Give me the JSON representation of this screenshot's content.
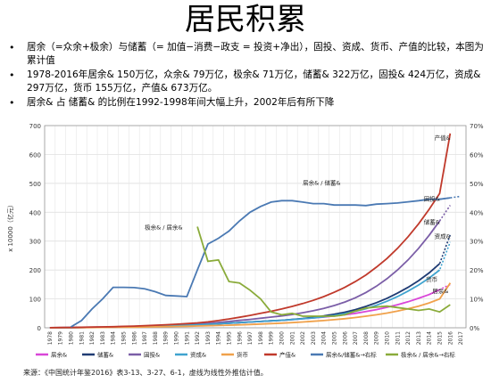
{
  "title": "居民积累",
  "bullets": [
    "居余（=众余+极余）与储蓄（= 加值−消费−政支 = 投资+净出），固投、资成、货币、产值的比较，本图为累计值",
    "1978-2016年居余& 150万亿，众余& 79万亿，极余& 71万亿，储蓄& 322万亿，固投& 424万亿，资成& 297万亿，货币 155万亿，产值& 673万亿。",
    "居余& 占 储蓄& 的比例在1992-1998年间大幅上升，2002年后有所下降"
  ],
  "source": "来源：《中国统计年鉴2016》表3-13、3-27、6-1，虚线为线性外推估计值。",
  "chart_data": {
    "type": "line",
    "ylabel": "x 10000（亿元）",
    "ylim": [
      0,
      700
    ],
    "y2lim": [
      0,
      0.7
    ],
    "yticks": [
      "0",
      "100",
      "200",
      "300",
      "400",
      "500",
      "600",
      "700"
    ],
    "y2ticks": [
      "0%",
      "10%",
      "20%",
      "30%",
      "40%",
      "50%",
      "60%",
      "70%"
    ],
    "x": [
      1978,
      1979,
      1980,
      1981,
      1982,
      1983,
      1984,
      1985,
      1986,
      1987,
      1988,
      1989,
      1990,
      1991,
      1992,
      1993,
      1994,
      1995,
      1996,
      1997,
      1998,
      1999,
      2000,
      2001,
      2002,
      2003,
      2004,
      2005,
      2006,
      2007,
      2008,
      2009,
      2010,
      2011,
      2012,
      2013,
      2014,
      2015,
      2016,
      2017
    ],
    "grid": true,
    "legend_position": "bottom",
    "series": [
      {
        "name": "居余&",
        "axis": "left",
        "color": "#d946d8",
        "dash_from": 2015,
        "values": [
          0.2,
          0.4,
          0.7,
          1,
          1.4,
          1.9,
          2.5,
          3.2,
          4,
          5,
          6,
          7,
          8,
          9,
          10.5,
          12,
          14,
          16,
          18,
          20,
          22,
          24,
          26,
          28.5,
          31,
          34,
          37,
          41,
          45,
          50,
          56,
          63,
          71,
          80,
          90,
          102,
          115,
          132,
          150,
          null
        ]
      },
      {
        "name": "储蓄&",
        "axis": "left",
        "color": "#1f3b73",
        "dash_from": 2015,
        "values": [
          0.2,
          0.4,
          0.7,
          1,
          1.4,
          1.9,
          2.5,
          3.2,
          4,
          5,
          6,
          7,
          8,
          9,
          10.5,
          12,
          14,
          16,
          18,
          20,
          22,
          24,
          26,
          29,
          32,
          36,
          41,
          47,
          54,
          63,
          74,
          87,
          102,
          120,
          140,
          163,
          190,
          222,
          322,
          null
        ]
      },
      {
        "name": "固投&",
        "axis": "left",
        "color": "#7b5ea7",
        "dash_from": 2015,
        "values": [
          0.3,
          0.6,
          0.9,
          1.3,
          1.8,
          2.4,
          3.1,
          4,
          5,
          6.2,
          7.5,
          8.5,
          9.5,
          11,
          13,
          15.5,
          18.5,
          22,
          25.5,
          29,
          33,
          37,
          41,
          46,
          52,
          59,
          67,
          77,
          89,
          104,
          122,
          144,
          170,
          200,
          235,
          275,
          320,
          370,
          424,
          null
        ]
      },
      {
        "name": "资成&",
        "axis": "left",
        "color": "#3fa3cf",
        "dash_from": 2015,
        "values": [
          0.2,
          0.4,
          0.7,
          1,
          1.4,
          1.9,
          2.5,
          3.2,
          4,
          5,
          6,
          7,
          8,
          9,
          10.5,
          12,
          14,
          16,
          18,
          20,
          22,
          24,
          26,
          28.5,
          31,
          34,
          38,
          43,
          49,
          57,
          66,
          78,
          92,
          108,
          127,
          148,
          172,
          200,
          297,
          null
        ]
      },
      {
        "name": "货币",
        "axis": "left",
        "color": "#f0a14b",
        "dash_from": 2016,
        "values": [
          0.1,
          0.2,
          0.4,
          0.6,
          0.8,
          1.1,
          1.4,
          1.8,
          2.3,
          2.8,
          3.4,
          4,
          4.6,
          5.3,
          6.1,
          7,
          8,
          9,
          10.2,
          11.5,
          13,
          14.5,
          16,
          18,
          20,
          22.5,
          25,
          28,
          31.5,
          35.5,
          40,
          45,
          51,
          58,
          66,
          75,
          86,
          100,
          155,
          null
        ]
      },
      {
        "name": "产值&",
        "axis": "left",
        "color": "#c0392b",
        "dash_from": 2017,
        "values": [
          0.4,
          0.8,
          1.3,
          1.8,
          2.4,
          3,
          3.8,
          4.8,
          6,
          7.3,
          8.8,
          10.5,
          12.3,
          14.5,
          17,
          20.5,
          25,
          30.5,
          36.5,
          43,
          50,
          57,
          65,
          74,
          84,
          95,
          108,
          123,
          140,
          160,
          183,
          210,
          240,
          275,
          315,
          360,
          410,
          465,
          673,
          null
        ]
      },
      {
        "name": "居余&/储蓄&→右标",
        "axis": "right",
        "color": "#4a79b3",
        "dash_from": 2016,
        "values": [
          null,
          null,
          0.003,
          0.025,
          0.065,
          0.1,
          0.14,
          0.14,
          0.139,
          0.135,
          0.125,
          0.112,
          0.11,
          0.108,
          0.2,
          0.29,
          0.31,
          0.335,
          0.37,
          0.4,
          0.42,
          0.435,
          0.44,
          0.44,
          0.435,
          0.43,
          0.43,
          0.425,
          0.425,
          0.425,
          0.423,
          0.428,
          0.43,
          0.432,
          0.436,
          0.44,
          0.445,
          0.445,
          0.45,
          0.455
        ]
      },
      {
        "name": "极余& / 居余&→右标",
        "axis": "right",
        "color": "#8aab3a",
        "dash_from": 2017,
        "values": [
          null,
          null,
          null,
          null,
          null,
          null,
          null,
          null,
          null,
          null,
          null,
          null,
          null,
          null,
          0.35,
          0.23,
          0.235,
          0.16,
          0.155,
          0.13,
          0.1,
          0.055,
          0.045,
          0.05,
          0.04,
          0.04,
          0.04,
          0.04,
          0.045,
          0.058,
          0.068,
          0.072,
          0.075,
          0.07,
          0.065,
          0.06,
          0.065,
          0.055,
          0.08,
          null
        ]
      }
    ],
    "annotations": [
      {
        "text": "产值&",
        "x": 2014.5,
        "y": 650
      },
      {
        "text": "居余& / 储蓄&",
        "x": 2002,
        "y": 495
      },
      {
        "text": "固投&",
        "x": 2013.5,
        "y": 440
      },
      {
        "text": "储蓄&",
        "x": 2013.5,
        "y": 360
      },
      {
        "text": "资成&",
        "x": 2014.5,
        "y": 310
      },
      {
        "text": "货币",
        "x": 2013.7,
        "y": 160
      },
      {
        "text": "居余&",
        "x": 2014.3,
        "y": 120
      },
      {
        "text": "极余& / 居余&",
        "x": 1987,
        "y": 340
      }
    ]
  }
}
